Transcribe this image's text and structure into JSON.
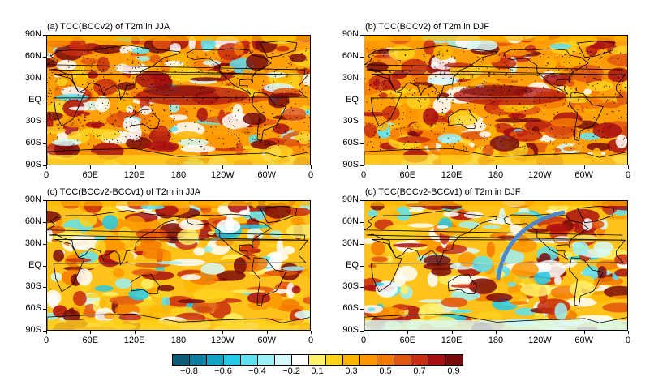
{
  "panels": [
    {
      "id": "a",
      "title": "(a) TCC(BCCv2) of T2m in JJA"
    },
    {
      "id": "b",
      "title": "(b) TCC(BCCv2) of T2m in DJF"
    },
    {
      "id": "c",
      "title": "(c) TCC(BCCv2-BCCv1) of T2m in JJA"
    },
    {
      "id": "d",
      "title": "(d) TCC(BCCv2-BCCv1) of T2m in DJF"
    }
  ],
  "lat_ticks": [
    "90N",
    "60N",
    "30N",
    "EQ",
    "30S",
    "60S",
    "90S"
  ],
  "lon_ticks": [
    "0",
    "60E",
    "120E",
    "180",
    "120W",
    "60W",
    "0"
  ],
  "colorbar": {
    "colors": [
      "#0a5c78",
      "#0b7fa0",
      "#10a5c5",
      "#25c9e8",
      "#5ee2f2",
      "#9ef0f7",
      "#d6fafc",
      "#ffffff",
      "#fff16a",
      "#ffd21e",
      "#ffb600",
      "#ff9800",
      "#f47a00",
      "#e05510",
      "#c82d0f",
      "#a90f12",
      "#7a0a0a"
    ],
    "labels": [
      "−0.8",
      "−0.6",
      "−0.4",
      "−0.2",
      "0.1",
      "0.3",
      "0.5",
      "0.7",
      "0.9"
    ]
  },
  "annotation": {
    "type": "arc-arrow",
    "color": "#4f86c6",
    "panel": "d"
  }
}
